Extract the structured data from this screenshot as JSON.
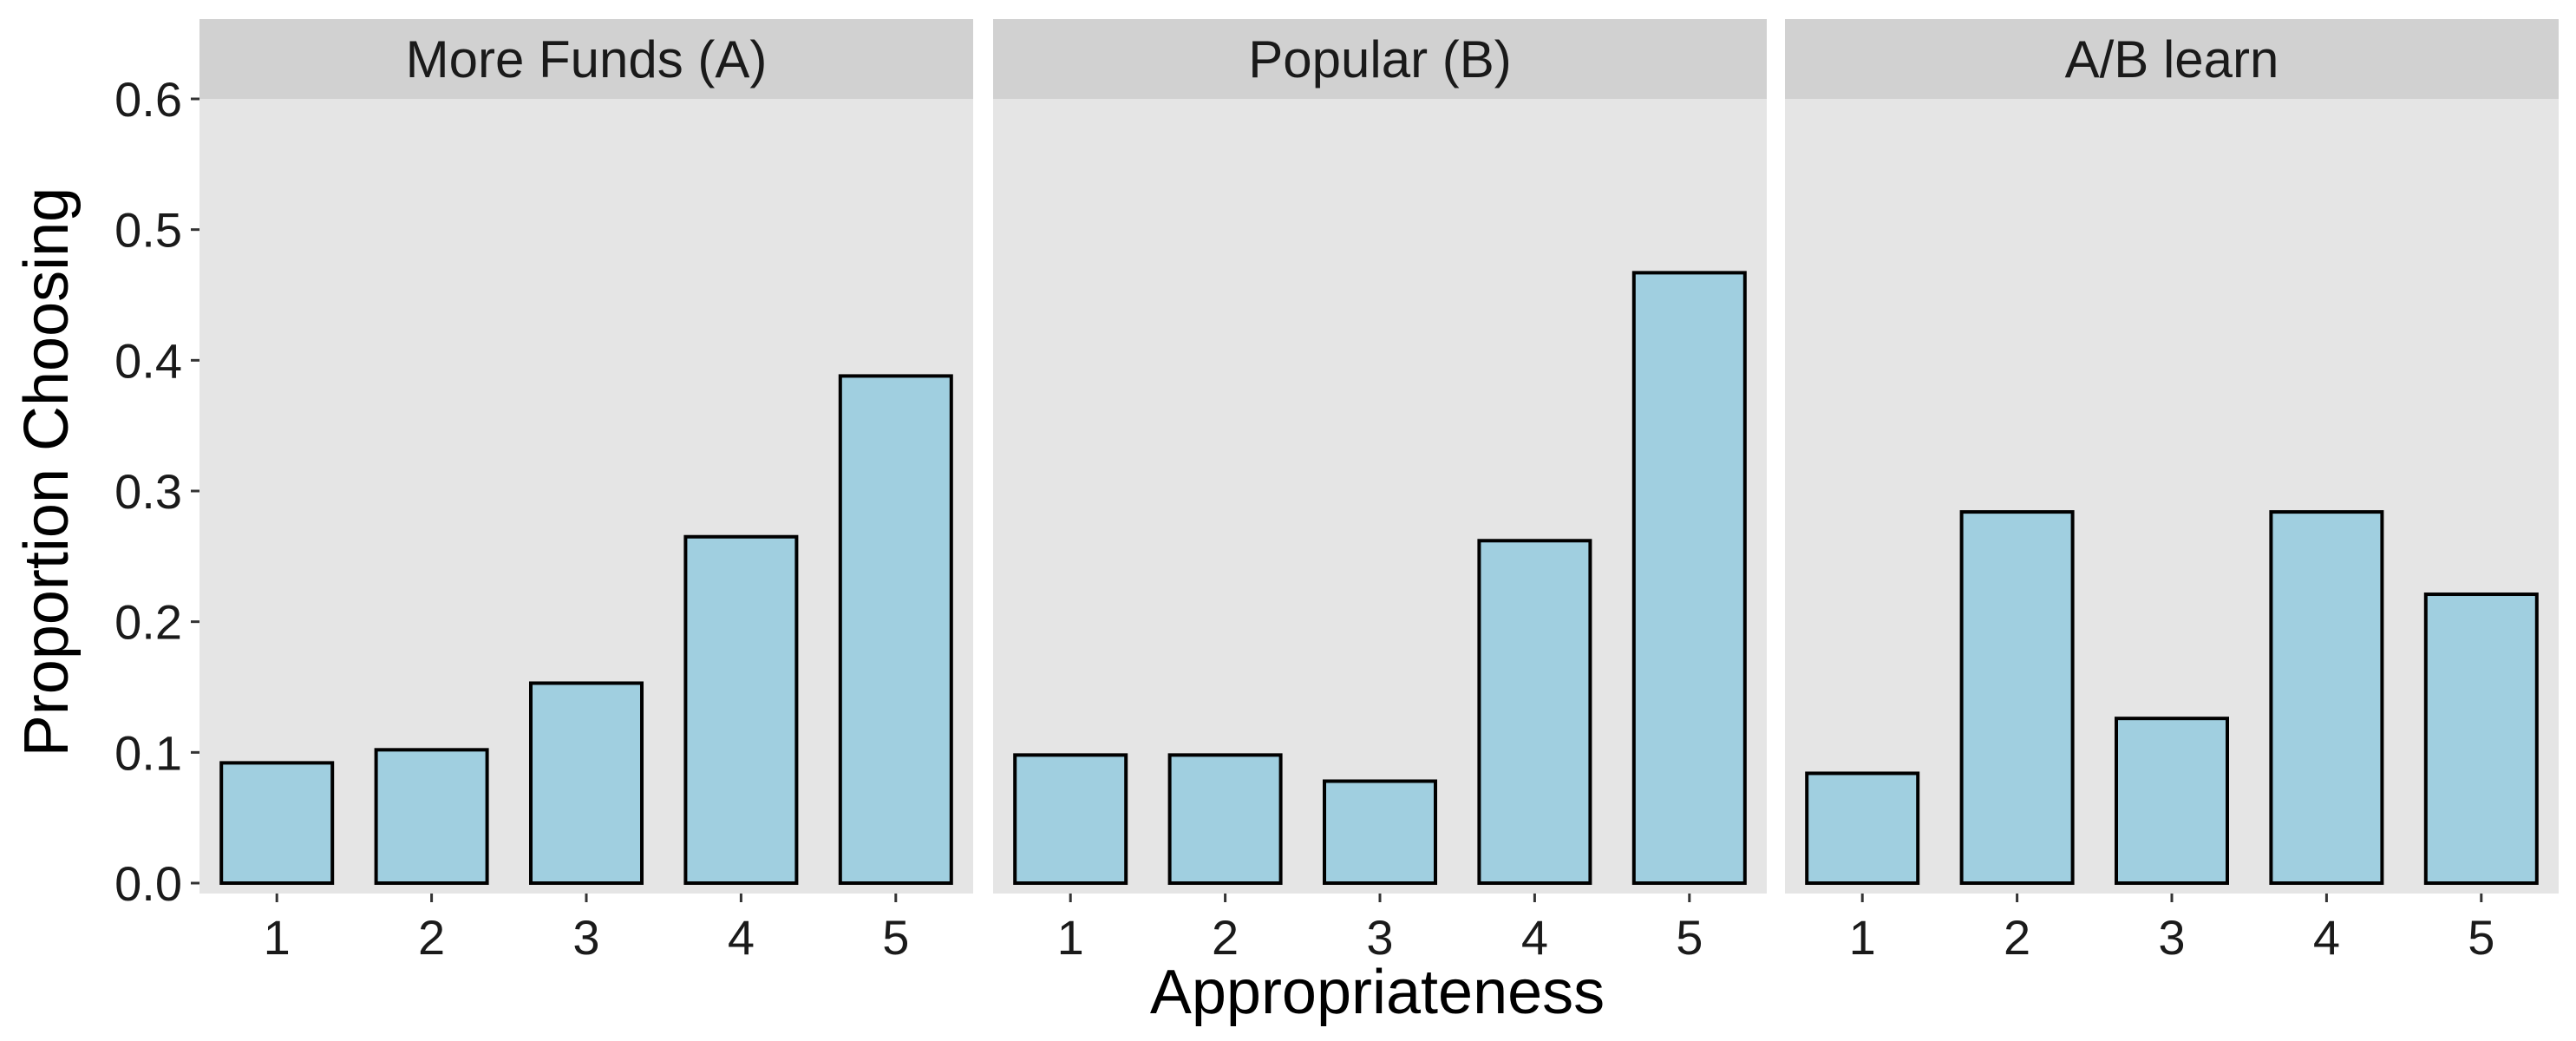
{
  "chart_data": {
    "type": "bar",
    "xlabel": "Appropriateness",
    "ylabel": "Proportion Choosing",
    "ylim": [
      0,
      0.6
    ],
    "y_ticks": [
      "0.0",
      "0.1",
      "0.2",
      "0.3",
      "0.4",
      "0.5",
      "0.6"
    ],
    "y_tick_values": [
      0,
      0.1,
      0.2,
      0.3,
      0.4,
      0.5,
      0.6
    ],
    "categories": [
      "1",
      "2",
      "3",
      "4",
      "5"
    ],
    "bar_color": "#a0cfe0",
    "panel_background": "#e5e5e5",
    "strip_background": "#d1d1d1",
    "grid": false,
    "panels": [
      {
        "title": "More Funds (A)",
        "values": [
          0.092,
          0.102,
          0.153,
          0.265,
          0.388
        ]
      },
      {
        "title": "Popular (B)",
        "values": [
          0.098,
          0.098,
          0.078,
          0.262,
          0.467
        ]
      },
      {
        "title": "A/B learn",
        "values": [
          0.084,
          0.284,
          0.126,
          0.284,
          0.221
        ]
      }
    ]
  }
}
